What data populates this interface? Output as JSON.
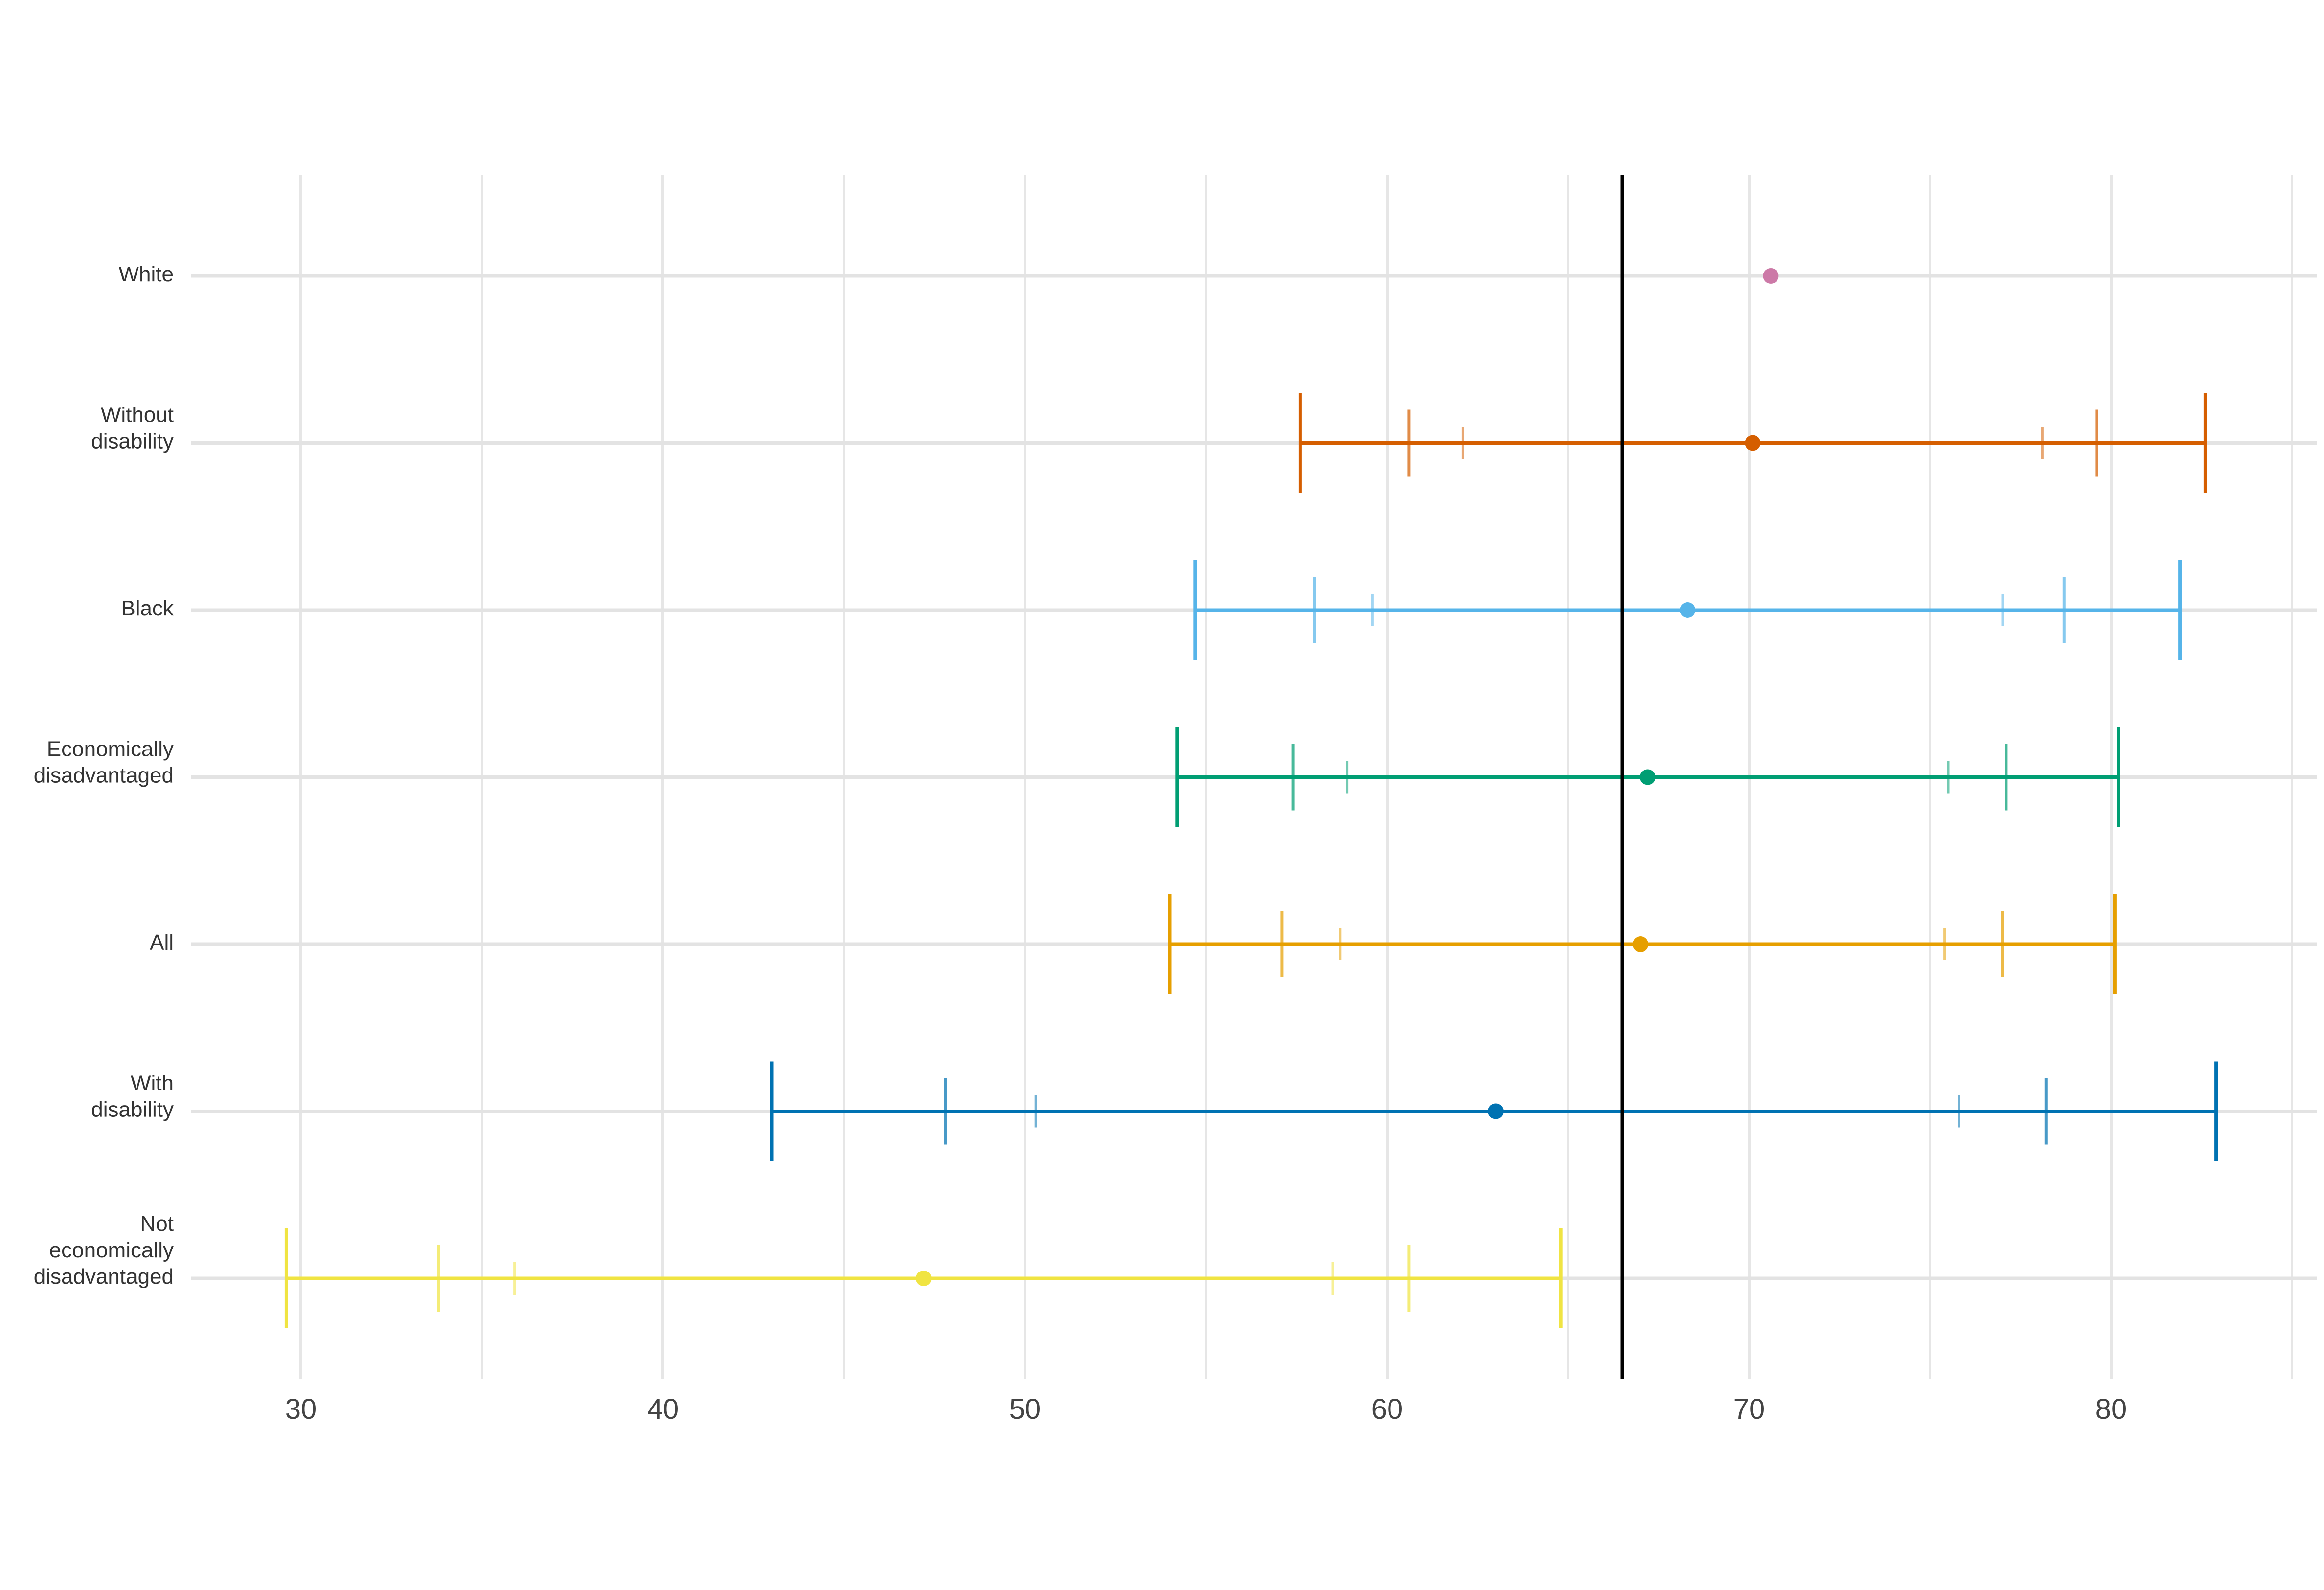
{
  "chart_data": {
    "type": "error-bar",
    "title": "",
    "xlabel": "",
    "ylabel": "",
    "xlim": [
      27,
      85.5
    ],
    "x_ticks": [
      30,
      40,
      50,
      60,
      70,
      80
    ],
    "grid": true,
    "reference_line": 66.5,
    "rows": [
      {
        "label": "White",
        "point": 70.6,
        "color": "#CC79A7"
      },
      {
        "label": "Without\ndisability",
        "point": 70.1,
        "color": "#D55E00",
        "outer": [
          57.6,
          82.6
        ],
        "middle": [
          60.6,
          79.6
        ],
        "inner": [
          62.1,
          78.1
        ]
      },
      {
        "label": "Black",
        "point": 68.3,
        "color": "#56B4E9",
        "outer": [
          54.7,
          81.9
        ],
        "middle": [
          58.0,
          78.7
        ],
        "inner": [
          59.6,
          77.0
        ]
      },
      {
        "label": "Economically\ndisadvantaged",
        "point": 67.2,
        "color": "#009E73",
        "outer": [
          54.2,
          80.2
        ],
        "middle": [
          57.4,
          77.1
        ],
        "inner": [
          58.9,
          75.5
        ]
      },
      {
        "label": "All",
        "point": 67.0,
        "color": "#E69F00",
        "outer": [
          54.0,
          80.1
        ],
        "middle": [
          57.1,
          77.0
        ],
        "inner": [
          58.7,
          75.4
        ]
      },
      {
        "label": "With\ndisability",
        "point": 63.0,
        "color": "#0072B2",
        "outer": [
          43.0,
          82.9
        ],
        "middle": [
          47.8,
          78.2
        ],
        "inner": [
          50.3,
          75.8
        ]
      },
      {
        "label": "Not\neconomically\ndisadvantaged",
        "point": 47.2,
        "color": "#F0E442",
        "outer": [
          29.6,
          64.8
        ],
        "middle": [
          33.8,
          60.6
        ],
        "inner": [
          35.9,
          58.5
        ]
      }
    ]
  }
}
